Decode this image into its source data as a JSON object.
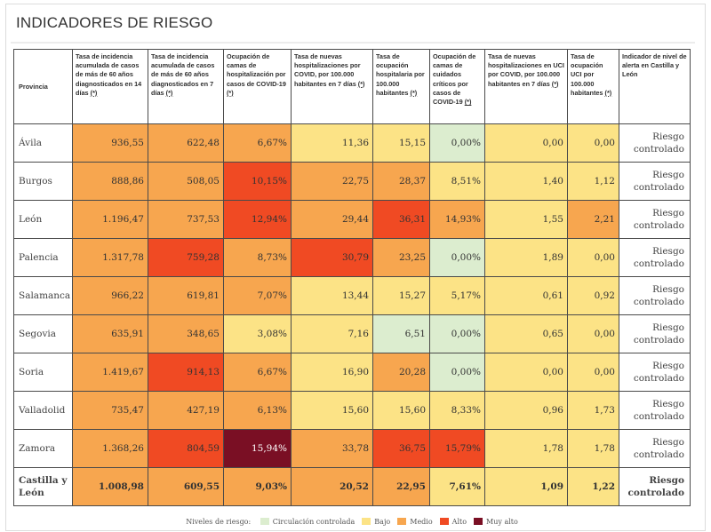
{
  "page": {
    "title": "INDICADORES DE RIESGO"
  },
  "colors": {
    "circulacion": "#dcedcf",
    "bajo": "#fce386",
    "medio": "#f7a64f",
    "alto": "#f04a23",
    "muy_alto": "#7a0f24",
    "white": "#ffffff"
  },
  "table": {
    "headers": [
      {
        "text": "Provincia",
        "star": ""
      },
      {
        "text": "Tasa de incidencia acumulada de casos de más de 60 años diagnosticados en 14 días ",
        "star": "(*)"
      },
      {
        "text": "Tasa de incidencia acumulada de casos de más de 60 años diagnosticados en 7 días ",
        "star": "(*)"
      },
      {
        "text": "Ocupación de camas de hospitalización por casos de COVID-19 ",
        "star": "(*)"
      },
      {
        "text": "Tasa de nuevas hospitalizaciones por COVID, por 100.000 habitantes en 7 días ",
        "star": "(*)"
      },
      {
        "text": "Tasa de ocupación hospitalaria por 100.000 habitantes ",
        "star": "(*)"
      },
      {
        "text": "Ocupación de camas de cuidados críticos por casos de COVID-19 ",
        "star": "(*)"
      },
      {
        "text": "Tasa de nuevas hospitalizaciones en UCI por COVID, por 100.000 habitantes en 7 días ",
        "star": "(*)"
      },
      {
        "text": "Tasa de ocupación UCI por 100.000 habitantes ",
        "star": "(*)"
      },
      {
        "text": "Indicador de nivel de alerta en Castilla y León",
        "star": ""
      }
    ],
    "rows": [
      {
        "provincia": "Ávila",
        "values": [
          "936,55",
          "622,48",
          "6,67%",
          "11,36",
          "15,15",
          "0,00%",
          "0,00",
          "0,00"
        ],
        "risk": [
          "medio",
          "medio",
          "medio",
          "bajo",
          "bajo",
          "circulacion",
          "bajo",
          "bajo"
        ],
        "alerta": "Riesgo controlado"
      },
      {
        "provincia": "Burgos",
        "values": [
          "888,86",
          "508,05",
          "10,15%",
          "22,75",
          "28,37",
          "8,51%",
          "1,40",
          "1,12"
        ],
        "risk": [
          "medio",
          "medio",
          "alto",
          "medio",
          "medio",
          "bajo",
          "bajo",
          "bajo"
        ],
        "alerta": "Riesgo controlado"
      },
      {
        "provincia": "León",
        "values": [
          "1.196,47",
          "737,53",
          "12,94%",
          "29,44",
          "36,31",
          "14,93%",
          "1,55",
          "2,21"
        ],
        "risk": [
          "medio",
          "medio",
          "alto",
          "medio",
          "alto",
          "medio",
          "bajo",
          "medio"
        ],
        "alerta": "Riesgo controlado"
      },
      {
        "provincia": "Palencia",
        "values": [
          "1.317,78",
          "759,28",
          "8,73%",
          "30,79",
          "23,25",
          "0,00%",
          "1,89",
          "0,00"
        ],
        "risk": [
          "medio",
          "alto",
          "medio",
          "alto",
          "medio",
          "circulacion",
          "bajo",
          "bajo"
        ],
        "alerta": "Riesgo controlado"
      },
      {
        "provincia": "Salamanca",
        "values": [
          "966,22",
          "619,81",
          "7,07%",
          "13,44",
          "15,27",
          "5,17%",
          "0,61",
          "0,92"
        ],
        "risk": [
          "medio",
          "medio",
          "medio",
          "bajo",
          "bajo",
          "bajo",
          "bajo",
          "bajo"
        ],
        "alerta": "Riesgo controlado"
      },
      {
        "provincia": "Segovia",
        "values": [
          "635,91",
          "348,65",
          "3,08%",
          "7,16",
          "6,51",
          "0,00%",
          "0,65",
          "0,00"
        ],
        "risk": [
          "medio",
          "medio",
          "bajo",
          "bajo",
          "circulacion",
          "circulacion",
          "bajo",
          "bajo"
        ],
        "alerta": "Riesgo controlado"
      },
      {
        "provincia": "Soria",
        "values": [
          "1.419,67",
          "914,13",
          "6,67%",
          "16,90",
          "20,28",
          "0,00%",
          "0,00",
          "0,00"
        ],
        "risk": [
          "medio",
          "alto",
          "medio",
          "bajo",
          "medio",
          "circulacion",
          "bajo",
          "bajo"
        ],
        "alerta": "Riesgo controlado"
      },
      {
        "provincia": "Valladolid",
        "values": [
          "735,47",
          "427,19",
          "6,13%",
          "15,60",
          "15,60",
          "8,33%",
          "0,96",
          "1,73"
        ],
        "risk": [
          "medio",
          "medio",
          "medio",
          "bajo",
          "bajo",
          "bajo",
          "bajo",
          "bajo"
        ],
        "alerta": "Riesgo controlado"
      },
      {
        "provincia": "Zamora",
        "values": [
          "1.368,26",
          "804,59",
          "15,94%",
          "33,78",
          "36,75",
          "15,79%",
          "1,78",
          "1,78"
        ],
        "risk": [
          "medio",
          "alto",
          "muy_alto",
          "medio",
          "alto",
          "alto",
          "bajo",
          "bajo"
        ],
        "alerta": "Riesgo controlado"
      },
      {
        "provincia": "Castilla y León",
        "values": [
          "1.008,98",
          "609,55",
          "9,03%",
          "20,52",
          "22,95",
          "7,61%",
          "1,09",
          "1,22"
        ],
        "risk": [
          "medio",
          "medio",
          "medio",
          "medio",
          "medio",
          "bajo",
          "bajo",
          "bajo"
        ],
        "alerta": "Riesgo controlado",
        "total": true
      }
    ]
  },
  "legend": {
    "title": "Niveles de riesgo:",
    "items": [
      {
        "key": "circulacion",
        "label": "Circulación controlada"
      },
      {
        "key": "bajo",
        "label": "Bajo"
      },
      {
        "key": "medio",
        "label": "Medio"
      },
      {
        "key": "alto",
        "label": "Alto"
      },
      {
        "key": "muy_alto",
        "label": "Muy alto"
      }
    ]
  }
}
